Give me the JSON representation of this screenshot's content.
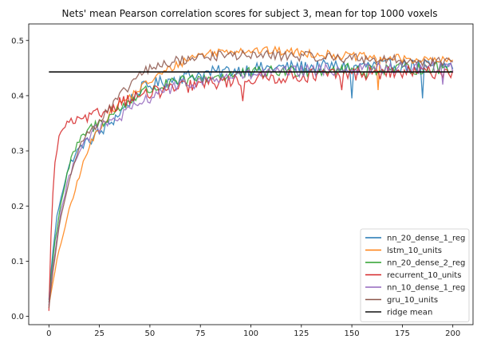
{
  "chart_data": {
    "type": "line",
    "title": "Nets' mean Pearson correlation scores for subject 3, mean for top 1000 voxels",
    "xlabel": "",
    "ylabel": "",
    "xlim": [
      -10,
      210
    ],
    "ylim": [
      -0.015,
      0.53
    ],
    "xticks": [
      0,
      25,
      50,
      75,
      100,
      125,
      150,
      175,
      200
    ],
    "yticks": [
      0.0,
      0.1,
      0.2,
      0.3,
      0.4,
      0.5
    ],
    "grid": false,
    "legend_position": "bottom-right",
    "series": [
      {
        "name": "nn_20_dense_1_reg",
        "color": "#1f77b4",
        "start": 0.03,
        "fast": 0.3,
        "tfast": 5,
        "plateau": 0.37,
        "p_end": 25,
        "late": 0.455,
        "tlate": 30,
        "noise": 0.012,
        "dips": [
          [
            150,
            0.395
          ],
          [
            185,
            0.395
          ]
        ]
      },
      {
        "name": "lstm_10_units",
        "color": "#ff7f0e",
        "start": 0.02,
        "fast": 0.42,
        "tfast": 18,
        "plateau": 0.42,
        "p_end": 40,
        "late": 0.492,
        "tlate": 25,
        "noise": 0.008,
        "hump": [
          [
            90,
            0.0
          ],
          [
            150,
            -0.02
          ],
          [
            200,
            -0.03
          ]
        ],
        "dips": [
          [
            163,
            0.41
          ]
        ]
      },
      {
        "name": "nn_20_dense_2_reg",
        "color": "#2ca02c",
        "start": 0.025,
        "fast": 0.34,
        "tfast": 7,
        "plateau": 0.37,
        "p_end": 25,
        "late": 0.45,
        "tlate": 35,
        "noise": 0.011,
        "dips": [
          [
            157,
            0.43
          ]
        ]
      },
      {
        "name": "recurrent_10_units",
        "color": "#d62728",
        "start": 0.01,
        "fast": 0.35,
        "tfast": 2,
        "plateau": 0.37,
        "p_end": 20,
        "late": 0.445,
        "tlate": 50,
        "noise": 0.012,
        "dips": [
          [
            96,
            0.39
          ],
          [
            145,
            0.41
          ]
        ]
      },
      {
        "name": "nn_10_dense_1_reg",
        "color": "#9467bd",
        "start": 0.02,
        "fast": 0.34,
        "tfast": 8,
        "plateau": 0.37,
        "p_end": 30,
        "late": 0.452,
        "tlate": 40,
        "noise": 0.011,
        "dips": [
          [
            195,
            0.42
          ]
        ]
      },
      {
        "name": "gru_10_units",
        "color": "#8c564b",
        "start": 0.015,
        "fast": 0.35,
        "tfast": 9,
        "plateau": 0.38,
        "p_end": 25,
        "late": 0.48,
        "tlate": 22,
        "noise": 0.009,
        "hump": [
          [
            80,
            0.0
          ],
          [
            140,
            -0.01
          ],
          [
            200,
            -0.02
          ]
        ],
        "dips": []
      }
    ],
    "reference": {
      "name": "ridge mean",
      "color": "#111111",
      "y": 0.443,
      "x": [
        0,
        200
      ]
    }
  }
}
